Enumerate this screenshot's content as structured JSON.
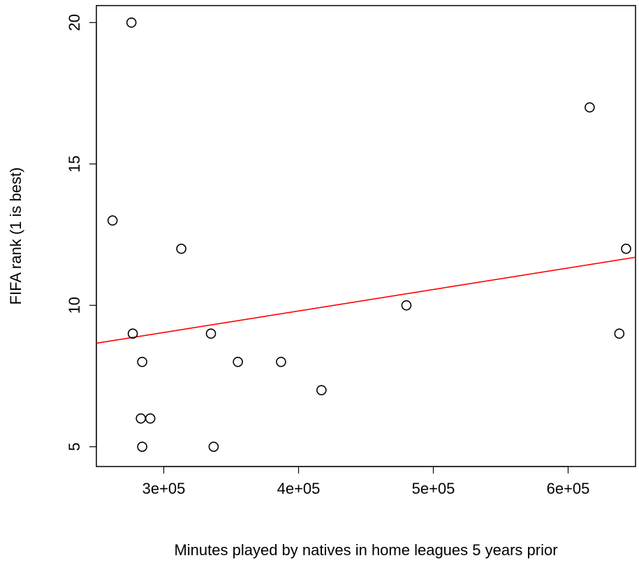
{
  "chart_data": {
    "type": "scatter",
    "title": "",
    "xlabel": "Minutes played by natives in home leagues 5 years prior",
    "ylabel": "FIFA rank (1 is best)",
    "xlim": [
      250000,
      650000
    ],
    "ylim": [
      4.3,
      20.6
    ],
    "x_ticks": [
      300000,
      400000,
      500000,
      600000
    ],
    "x_tick_labels": [
      "3e+05",
      "4e+05",
      "5e+05",
      "6e+05"
    ],
    "y_ticks": [
      5,
      10,
      15,
      20
    ],
    "y_tick_labels": [
      "5",
      "10",
      "15",
      "20"
    ],
    "grid": false,
    "series": [
      {
        "marker": "open-circle",
        "points": [
          {
            "x": 276000,
            "y": 20
          },
          {
            "x": 262000,
            "y": 13
          },
          {
            "x": 313000,
            "y": 12
          },
          {
            "x": 277000,
            "y": 9
          },
          {
            "x": 335000,
            "y": 9
          },
          {
            "x": 284000,
            "y": 8
          },
          {
            "x": 355000,
            "y": 8
          },
          {
            "x": 387000,
            "y": 8
          },
          {
            "x": 283000,
            "y": 6
          },
          {
            "x": 290000,
            "y": 6
          },
          {
            "x": 284000,
            "y": 5
          },
          {
            "x": 337000,
            "y": 5
          },
          {
            "x": 417000,
            "y": 7
          },
          {
            "x": 480000,
            "y": 10
          },
          {
            "x": 616000,
            "y": 17
          },
          {
            "x": 638000,
            "y": 9
          },
          {
            "x": 643000,
            "y": 12
          }
        ]
      }
    ],
    "fit_line": {
      "color": "#ff0000",
      "x": [
        250000,
        650000
      ],
      "y": [
        8.66,
        11.7
      ]
    },
    "colors": {
      "points": "#000000",
      "fit_line": "#ff0000",
      "frame": "#000000"
    }
  }
}
